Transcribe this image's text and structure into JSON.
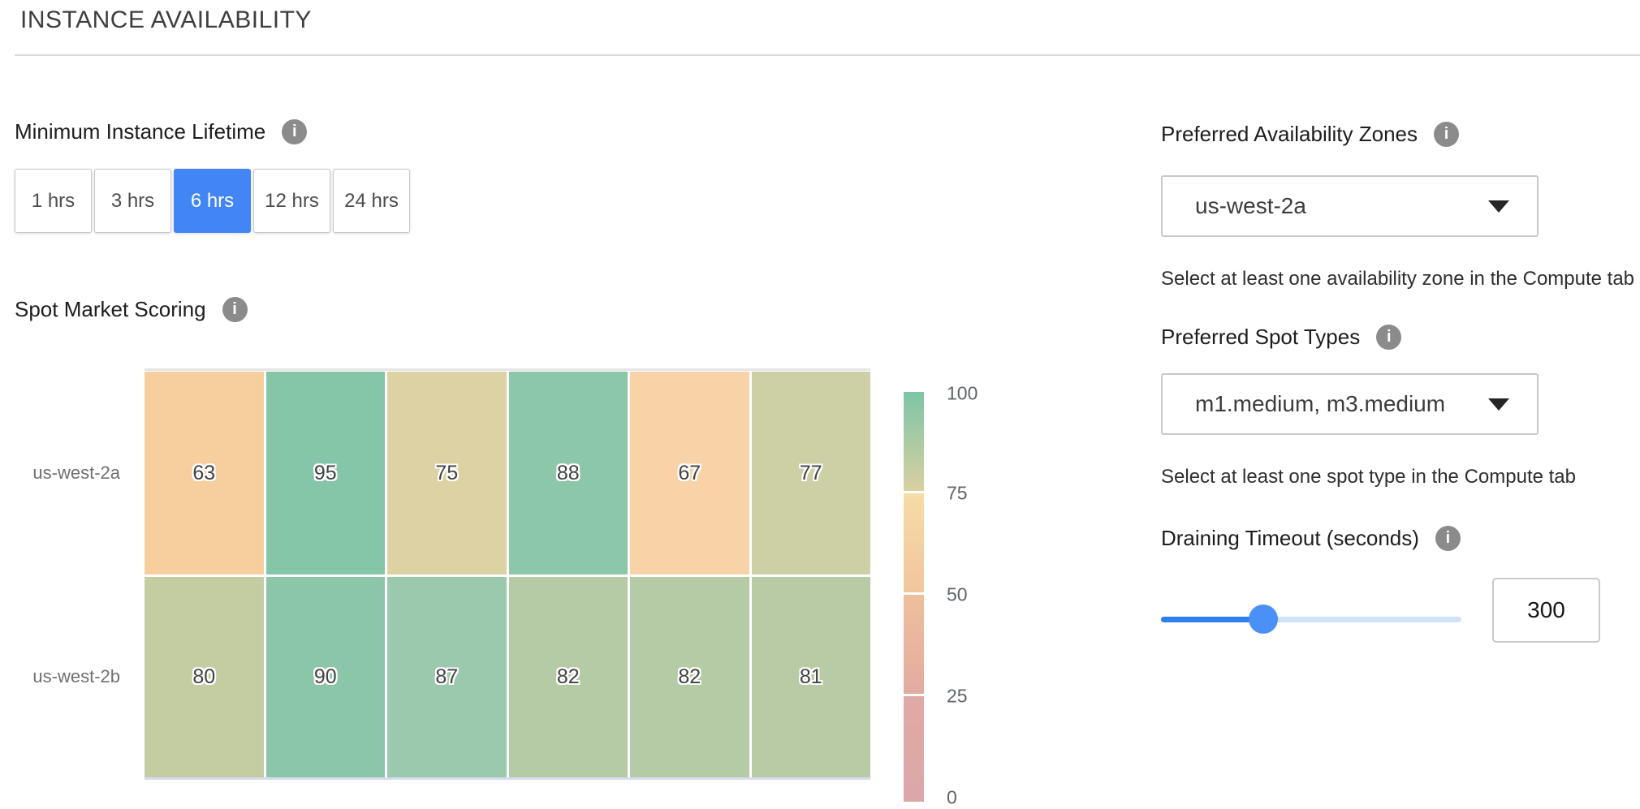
{
  "page": {
    "title": "INSTANCE AVAILABILITY"
  },
  "icons": {
    "info_glyph": "i"
  },
  "colors": {
    "accent_blue": "#4285f4",
    "slider_fill": "#2e7ef0",
    "slider_track": "#cfe2fa",
    "slider_thumb": "#4a90f7",
    "info_icon_bg": "#8b8b8b"
  },
  "minimum_instance_lifetime": {
    "label": "Minimum Instance Lifetime",
    "options": [
      {
        "label": "1 hrs",
        "selected": false
      },
      {
        "label": "3 hrs",
        "selected": false
      },
      {
        "label": "6 hrs",
        "selected": true
      },
      {
        "label": "12 hrs",
        "selected": false
      },
      {
        "label": "24 hrs",
        "selected": false
      }
    ]
  },
  "spot_market_scoring": {
    "label": "Spot Market Scoring"
  },
  "chart_data": {
    "type": "heatmap",
    "title": "Spot Market Scoring",
    "rows": [
      "us-west-2a",
      "us-west-2b"
    ],
    "num_columns": 6,
    "x_tick_labels_visible": false,
    "values": [
      [
        63,
        95,
        75,
        88,
        67,
        77
      ],
      [
        80,
        90,
        87,
        82,
        82,
        81
      ]
    ],
    "cell_colors": [
      [
        "#f7cf9f",
        "#85c6a9",
        "#ddd2a4",
        "#8dc7aa",
        "#f7d3a7",
        "#cdd0a4"
      ],
      [
        "#c3cda1",
        "#8cc6a9",
        "#9ac9ad",
        "#b5cba6",
        "#b5cba6",
        "#b9cba5"
      ]
    ],
    "colorbar": {
      "range": [
        0,
        100
      ],
      "ticks": [
        "100",
        "75",
        "50",
        "25",
        "0"
      ],
      "segments": [
        {
          "from": "#7cc5a7",
          "to": "#d9d0a0"
        },
        {
          "from": "#f6dca6",
          "to": "#f1c69d"
        },
        {
          "from": "#efbf9b",
          "to": "#e3aba0"
        },
        {
          "from": "#e1a9a5",
          "to": "#dba7a9"
        }
      ]
    }
  },
  "preferred_availability_zones": {
    "label": "Preferred Availability Zones",
    "value": "us-west-2a",
    "hint": "Select at least one availability zone in the Compute tab"
  },
  "preferred_spot_types": {
    "label": "Preferred Spot Types",
    "value": "m1.medium, m3.medium",
    "hint": "Select at least one spot type in the Compute tab"
  },
  "draining_timeout": {
    "label": "Draining Timeout (seconds)",
    "value": "300",
    "slider_fraction": 0.34
  }
}
